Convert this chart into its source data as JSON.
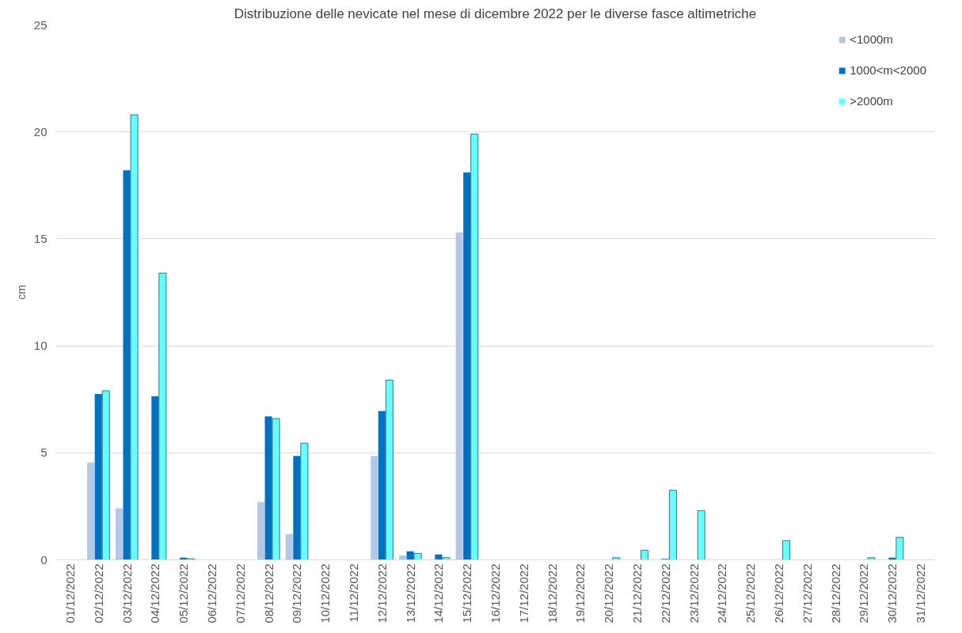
{
  "chart_data": {
    "type": "bar",
    "title": "Distribuzione delle nevicate nel mese di dicembre 2022 per le diverse fasce altimetriche",
    "ylabel": "cm",
    "categories": [
      "01/12/2022",
      "02/12/2022",
      "03/12/2022",
      "04/12/2022",
      "05/12/2022",
      "06/12/2022",
      "07/12/2022",
      "08/12/2022",
      "09/12/2022",
      "10/12/2022",
      "11/12/2022",
      "12/12/2022",
      "13/12/2022",
      "14/12/2022",
      "15/12/2022",
      "16/12/2022",
      "17/12/2022",
      "18/12/2022",
      "19/12/2022",
      "20/12/2022",
      "21/12/2022",
      "22/12/2022",
      "23/12/2022",
      "24/12/2022",
      "25/12/2022",
      "26/12/2022",
      "27/12/2022",
      "28/12/2022",
      "29/12/2022",
      "30/12/2022",
      "31/12/2022"
    ],
    "series": [
      {
        "name": "<1000m",
        "color": "#b4c7e7",
        "values": [
          0,
          4.55,
          2.4,
          0,
          0,
          0,
          null,
          2.7,
          1.2,
          0,
          0,
          4.85,
          0.2,
          0,
          15.3,
          0,
          0,
          0,
          0,
          0,
          0,
          0,
          0,
          0,
          0,
          0,
          0,
          0,
          0,
          0,
          0
        ]
      },
      {
        "name": "1000<m<2000",
        "color": "#0070c0",
        "values": [
          0,
          7.75,
          18.2,
          7.65,
          0.1,
          0,
          0,
          6.7,
          4.85,
          0,
          0,
          6.95,
          0.4,
          0.25,
          18.1,
          0,
          0,
          0,
          0,
          0,
          0,
          0.05,
          0,
          0,
          0,
          0,
          0,
          0,
          0,
          0.1,
          0
        ]
      },
      {
        "name": ">2000m",
        "color": "#66ffff",
        "values": [
          0,
          7.9,
          20.8,
          13.4,
          0.05,
          0,
          0,
          6.6,
          5.45,
          0,
          0,
          8.4,
          0.3,
          0.1,
          19.9,
          0,
          0,
          0,
          0,
          0.1,
          0.45,
          3.25,
          2.3,
          0,
          0,
          0.9,
          0,
          0,
          0.1,
          1.05,
          0
        ]
      }
    ],
    "ylim": [
      0,
      25
    ],
    "yticks": [
      0,
      5,
      10,
      15,
      20,
      25
    ],
    "grid": "y",
    "legend": "top right"
  }
}
